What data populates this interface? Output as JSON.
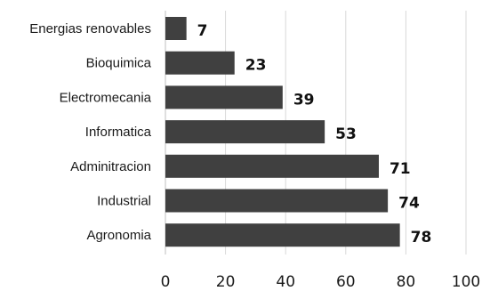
{
  "chart_data": {
    "type": "bar",
    "orientation": "horizontal",
    "title": "",
    "xlabel": "",
    "ylabel": "",
    "categories": [
      "Energias renovables",
      "Bioquimica",
      "Electromecania",
      "Informatica",
      "Adminitracion",
      "Industrial",
      "Agronomia"
    ],
    "values": [
      7,
      23,
      39,
      53,
      71,
      74,
      78
    ],
    "value_labels": [
      "7",
      "23",
      "39",
      "53",
      "71",
      "74",
      "78"
    ],
    "xlim": [
      0,
      100
    ],
    "ticks": [
      0,
      20,
      40,
      60,
      80,
      100
    ],
    "tick_labels": [
      "0",
      "20",
      "40",
      "60",
      "80",
      "100"
    ],
    "grid": "vertical",
    "legend": "none",
    "colors": {
      "bar": "#404040",
      "gridline": "#d9d9d9",
      "text": "#1a1a1a"
    }
  }
}
